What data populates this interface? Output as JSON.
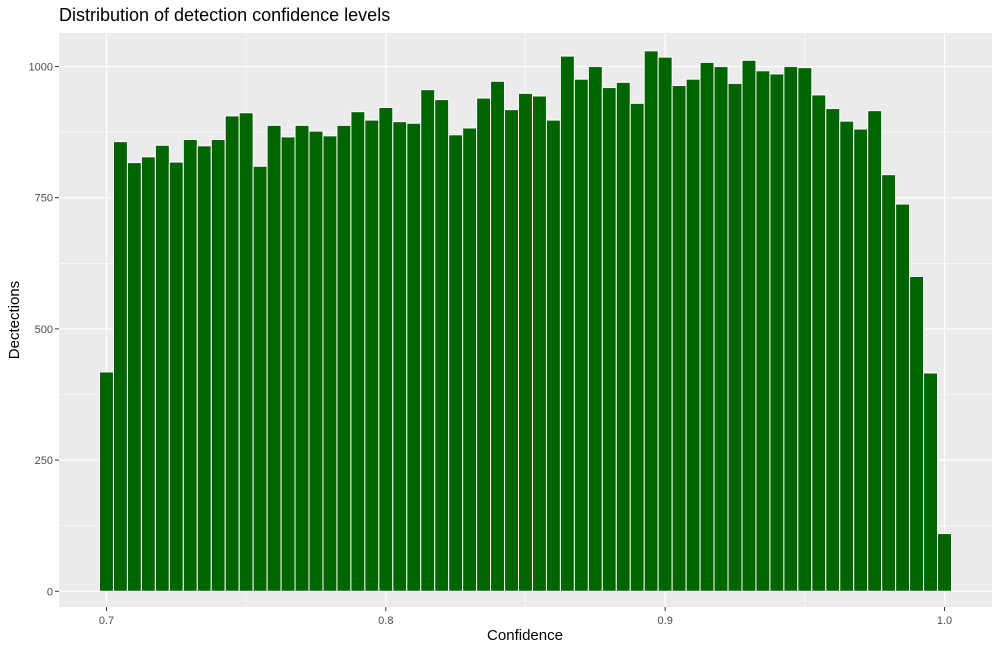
{
  "chart_data": {
    "type": "bar",
    "title": "Distribution of detection confidence levels",
    "xlabel": "Confidence",
    "ylabel": "Dectections",
    "xlim": [
      0.683,
      1.017
    ],
    "ylim": [
      -30,
      1064
    ],
    "x_ticks": [
      {
        "value": 0.7,
        "label": "0.7"
      },
      {
        "value": 0.8,
        "label": "0.8"
      },
      {
        "value": 0.9,
        "label": "0.9"
      },
      {
        "value": 1.0,
        "label": "1.0"
      }
    ],
    "y_ticks": [
      {
        "value": 0,
        "label": "0"
      },
      {
        "value": 250,
        "label": "250"
      },
      {
        "value": 500,
        "label": "500"
      },
      {
        "value": 750,
        "label": "750"
      },
      {
        "value": 1000,
        "label": "1000"
      }
    ],
    "bin_start": 0.6975,
    "bin_width": 0.005,
    "values": [
      418,
      857,
      817,
      828,
      850,
      818,
      861,
      849,
      861,
      906,
      912,
      810,
      888,
      866,
      888,
      877,
      868,
      888,
      914,
      898,
      922,
      895,
      892,
      956,
      937,
      870,
      883,
      940,
      972,
      918,
      949,
      944,
      898,
      1020,
      976,
      1000,
      960,
      970,
      930,
      1030,
      1018,
      964,
      976,
      1008,
      1000,
      968,
      1012,
      992,
      986,
      1000,
      998,
      946,
      920,
      896,
      881,
      916,
      794,
      738,
      600,
      416,
      110
    ],
    "bar_color": "#006400",
    "bar_edge_color": "#ffffff",
    "panel_background": "#ebebeb",
    "grid": true,
    "legend": "none"
  }
}
